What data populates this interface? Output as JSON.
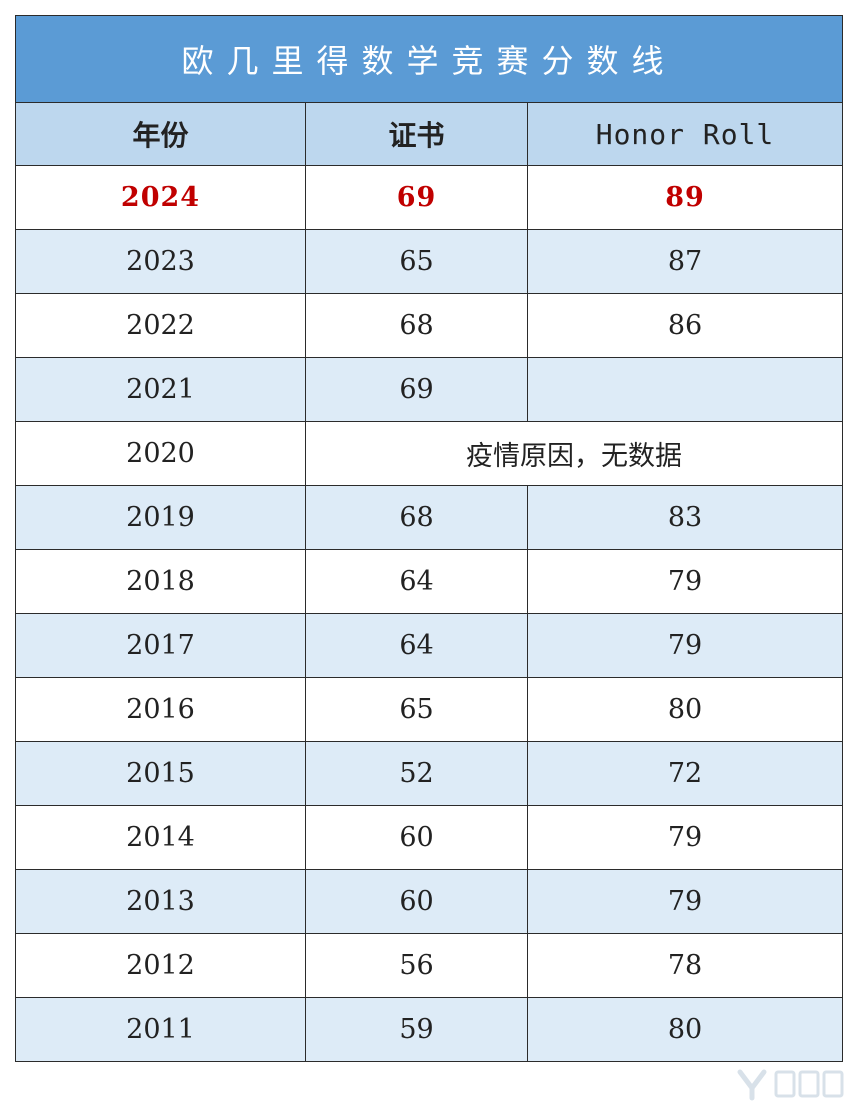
{
  "title": "欧几里得数学竞赛分数线",
  "columns": {
    "year": "年份",
    "certificate": "证书",
    "honor_roll": "Honor Roll"
  },
  "highlight_color": "#c00000",
  "header_bg": "#5b9bd5",
  "rows": [
    {
      "year": "2024",
      "certificate": "69",
      "honor_roll": "89"
    },
    {
      "year": "2023",
      "certificate": "65",
      "honor_roll": "87"
    },
    {
      "year": "2022",
      "certificate": "68",
      "honor_roll": "86"
    },
    {
      "year": "2021",
      "certificate": "69",
      "honor_roll": ""
    },
    {
      "year": "2020",
      "note": "疫情原因，无数据"
    },
    {
      "year": "2019",
      "certificate": "68",
      "honor_roll": "83"
    },
    {
      "year": "2018",
      "certificate": "64",
      "honor_roll": "79"
    },
    {
      "year": "2017",
      "certificate": "64",
      "honor_roll": "79"
    },
    {
      "year": "2016",
      "certificate": "65",
      "honor_roll": "80"
    },
    {
      "year": "2015",
      "certificate": "52",
      "honor_roll": "72"
    },
    {
      "year": "2014",
      "certificate": "60",
      "honor_roll": "79"
    },
    {
      "year": "2013",
      "certificate": "60",
      "honor_roll": "79"
    },
    {
      "year": "2012",
      "certificate": "56",
      "honor_roll": "78"
    },
    {
      "year": "2011",
      "certificate": "59",
      "honor_roll": "80"
    }
  ]
}
